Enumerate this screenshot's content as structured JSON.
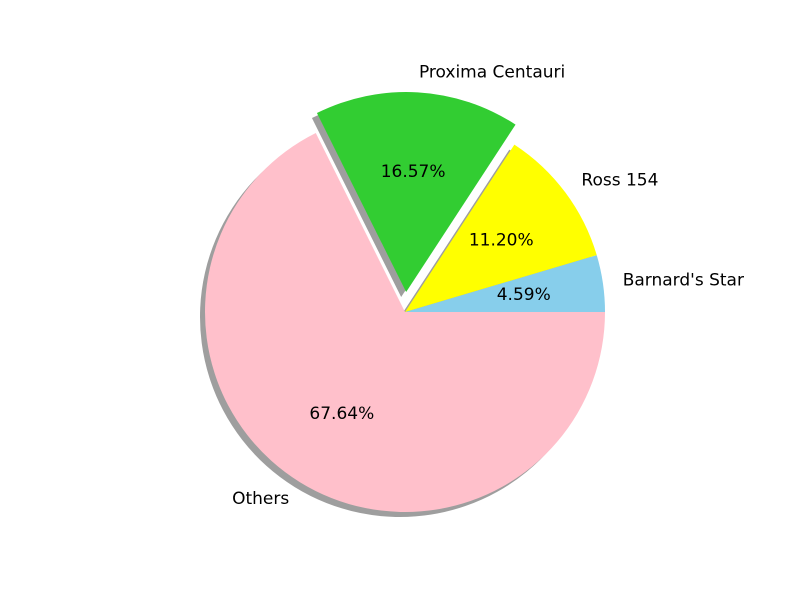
{
  "chart_data": {
    "type": "pie",
    "slices": [
      {
        "label": "Barnard's Star",
        "value": 4.59,
        "pct_label": "4.59%",
        "color": "#87ceeb",
        "explode": false
      },
      {
        "label": "Ross 154",
        "value": 11.2,
        "pct_label": "11.20%",
        "color": "#ffff00",
        "explode": false
      },
      {
        "label": "Proxima Centauri",
        "value": 16.57,
        "pct_label": "16.57%",
        "color": "#32cd32",
        "explode": true
      },
      {
        "label": "Others",
        "value": 67.64,
        "pct_label": "67.64%",
        "color": "#ffc0cb",
        "explode": false
      }
    ],
    "start_angle_deg": 0,
    "direction": "counterclockwise",
    "shadow": true,
    "title": ""
  }
}
